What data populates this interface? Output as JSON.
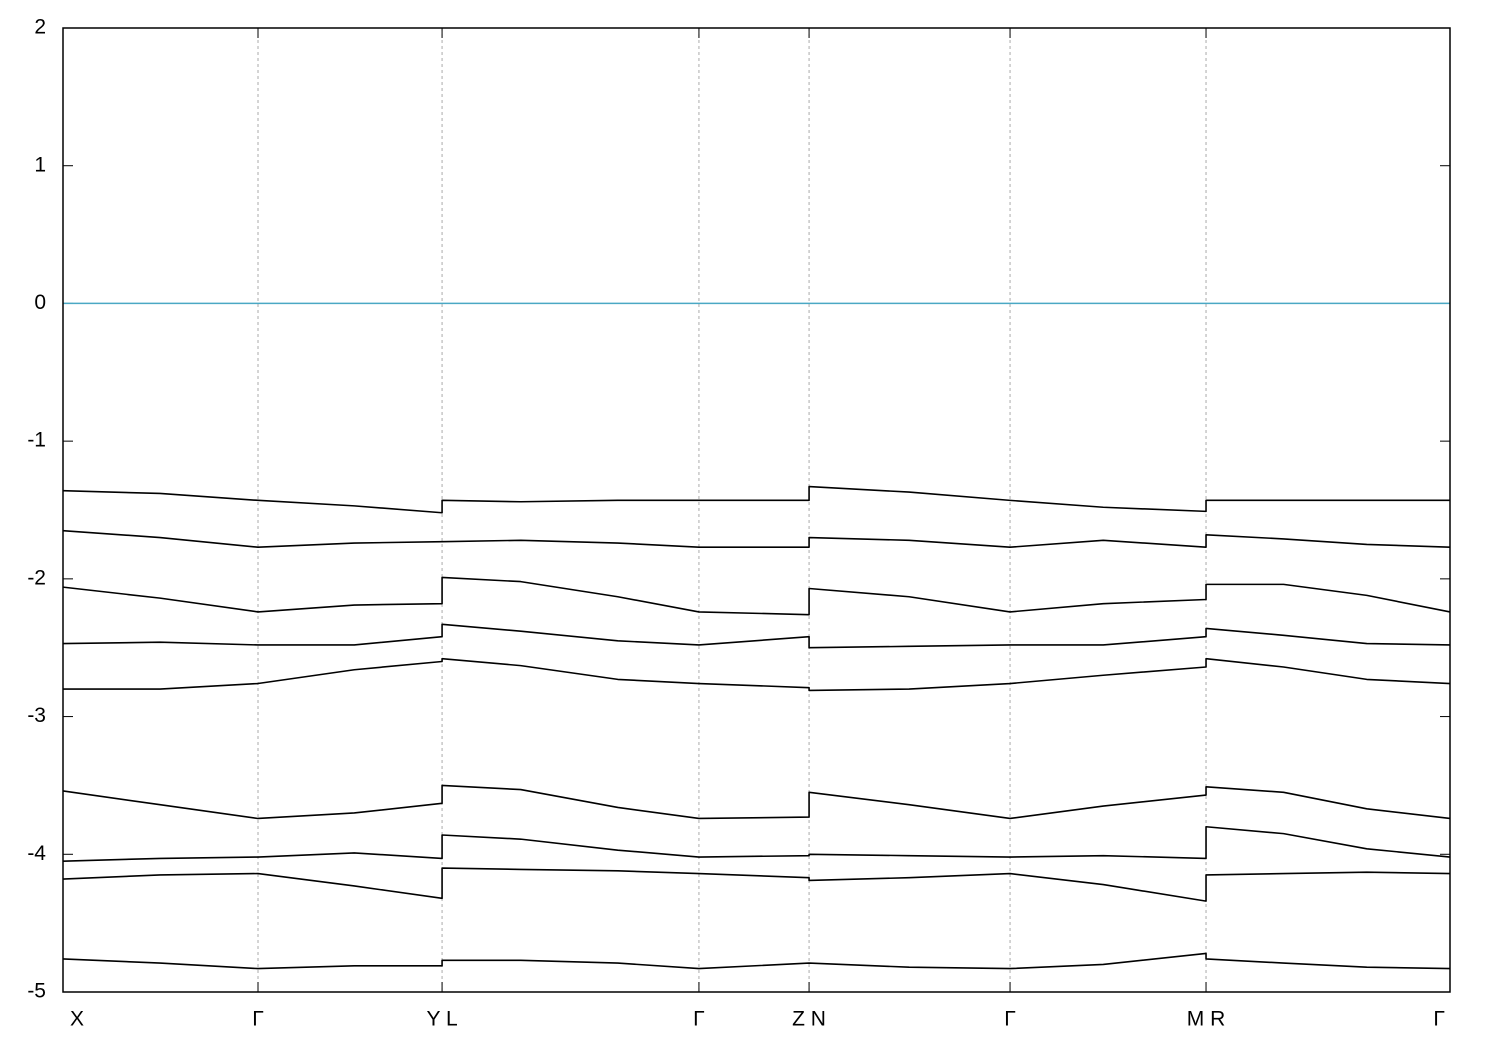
{
  "chart_data": {
    "type": "line",
    "x": [
      0,
      0.07,
      0.1406,
      0.21,
      0.2733,
      0.2733,
      0.33,
      0.4,
      0.4585,
      0.5379,
      0.5379,
      0.61,
      0.6828,
      0.75,
      0.8241,
      0.8241,
      0.88,
      0.94,
      1.0
    ],
    "xlim": [
      0,
      1
    ],
    "xticks": [
      {
        "value": 0,
        "label": "X"
      },
      {
        "value": 0.1406,
        "label": "Γ"
      },
      {
        "value": 0.2733,
        "label": "Y L"
      },
      {
        "value": 0.4585,
        "label": "Γ"
      },
      {
        "value": 0.5379,
        "label": "Z N"
      },
      {
        "value": 0.6828,
        "label": "Γ"
      },
      {
        "value": 0.8241,
        "label": "M R"
      },
      {
        "value": 1.0,
        "label": "Γ"
      }
    ],
    "ylim": [
      -5,
      2
    ],
    "yticks": [
      2,
      1,
      0,
      -1,
      -2,
      -3,
      -4,
      -5
    ],
    "xgrid": true,
    "hlines": [
      {
        "value": 0,
        "color": "#4aa8c4"
      }
    ],
    "series": [
      {
        "color": "#000000",
        "values": [
          -1.36,
          -1.38,
          -1.43,
          -1.47,
          -1.52,
          -1.43,
          -1.44,
          -1.43,
          -1.43,
          -1.43,
          -1.33,
          -1.37,
          -1.43,
          -1.48,
          -1.51,
          -1.43,
          -1.43,
          -1.43,
          -1.43
        ]
      },
      {
        "color": "#000000",
        "values": [
          -1.65,
          -1.7,
          -1.77,
          -1.74,
          -1.73,
          -1.73,
          -1.72,
          -1.74,
          -1.77,
          -1.77,
          -1.7,
          -1.72,
          -1.77,
          -1.72,
          -1.77,
          -1.68,
          -1.71,
          -1.75,
          -1.77
        ]
      },
      {
        "color": "#000000",
        "values": [
          -2.06,
          -2.14,
          -2.24,
          -2.19,
          -2.18,
          -1.99,
          -2.02,
          -2.13,
          -2.24,
          -2.26,
          -2.07,
          -2.13,
          -2.24,
          -2.18,
          -2.15,
          -2.04,
          -2.04,
          -2.12,
          -2.24
        ]
      },
      {
        "color": "#000000",
        "values": [
          -2.47,
          -2.46,
          -2.48,
          -2.48,
          -2.42,
          -2.33,
          -2.38,
          -2.45,
          -2.48,
          -2.42,
          -2.5,
          -2.49,
          -2.48,
          -2.48,
          -2.42,
          -2.36,
          -2.41,
          -2.47,
          -2.48
        ]
      },
      {
        "color": "#000000",
        "values": [
          -2.8,
          -2.8,
          -2.76,
          -2.66,
          -2.6,
          -2.58,
          -2.63,
          -2.73,
          -2.76,
          -2.79,
          -2.81,
          -2.8,
          -2.76,
          -2.7,
          -2.64,
          -2.58,
          -2.64,
          -2.73,
          -2.76
        ]
      },
      {
        "color": "#000000",
        "values": [
          -3.54,
          -3.64,
          -3.74,
          -3.7,
          -3.63,
          -3.5,
          -3.53,
          -3.66,
          -3.74,
          -3.73,
          -3.55,
          -3.64,
          -3.74,
          -3.65,
          -3.57,
          -3.51,
          -3.55,
          -3.67,
          -3.74
        ]
      },
      {
        "color": "#000000",
        "values": [
          -4.05,
          -4.03,
          -4.02,
          -3.99,
          -4.03,
          -3.86,
          -3.89,
          -3.97,
          -4.02,
          -4.01,
          -4.0,
          -4.01,
          -4.02,
          -4.01,
          -4.03,
          -3.8,
          -3.85,
          -3.96,
          -4.02
        ]
      },
      {
        "color": "#000000",
        "values": [
          -4.18,
          -4.15,
          -4.14,
          -4.23,
          -4.32,
          -4.1,
          -4.11,
          -4.12,
          -4.14,
          -4.17,
          -4.19,
          -4.17,
          -4.14,
          -4.22,
          -4.34,
          -4.15,
          -4.14,
          -4.13,
          -4.14
        ]
      },
      {
        "color": "#000000",
        "values": [
          -4.76,
          -4.79,
          -4.83,
          -4.81,
          -4.81,
          -4.77,
          -4.77,
          -4.79,
          -4.83,
          -4.79,
          -4.79,
          -4.82,
          -4.83,
          -4.8,
          -4.72,
          -4.76,
          -4.79,
          -4.82,
          -4.83
        ]
      }
    ]
  }
}
